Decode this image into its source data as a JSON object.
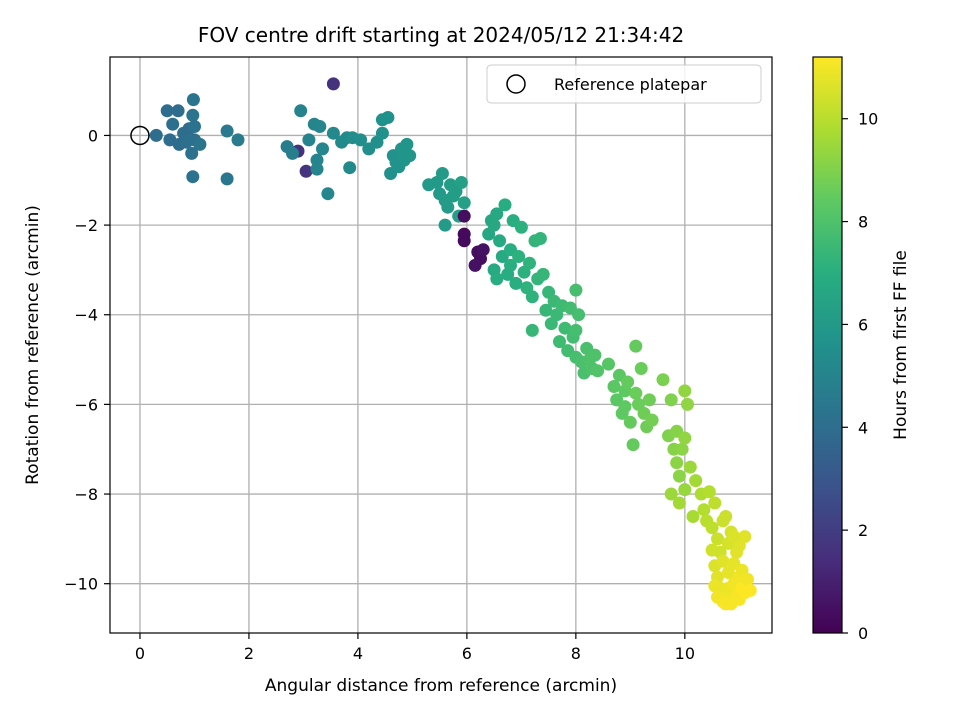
{
  "chart_data": {
    "type": "scatter",
    "title": "FOV centre drift starting at 2024/05/12 21:34:42",
    "xlabel": "Angular distance from reference (arcmin)",
    "ylabel": "Rotation from reference (arcmin)",
    "xlim": [
      -0.55,
      11.6
    ],
    "ylim": [
      -11.1,
      1.75
    ],
    "xticks": [
      0,
      2,
      4,
      6,
      8,
      10
    ],
    "yticks": [
      0,
      -2,
      -4,
      -6,
      -8,
      -10
    ],
    "grid": true,
    "legend": {
      "placement": "top-right",
      "entries": [
        "Reference platepar"
      ]
    },
    "reference_point": {
      "x": 0,
      "y": 0,
      "label": "Reference platepar"
    },
    "colorbar": {
      "label": "Hours from first FF file",
      "min": 0,
      "max": 11.2,
      "ticks": [
        0,
        2,
        4,
        6,
        8,
        10
      ],
      "colormap": "viridis"
    },
    "points": [
      {
        "x": 0.3,
        "y": 0.0,
        "t": 4.0
      },
      {
        "x": 0.5,
        "y": 0.55,
        "t": 4.0
      },
      {
        "x": 0.55,
        "y": -0.1,
        "t": 4.0
      },
      {
        "x": 0.6,
        "y": 0.25,
        "t": 4.1
      },
      {
        "x": 0.7,
        "y": 0.55,
        "t": 4.0
      },
      {
        "x": 0.72,
        "y": -0.2,
        "t": 3.9
      },
      {
        "x": 0.8,
        "y": 0.05,
        "t": 4.0
      },
      {
        "x": 0.85,
        "y": -0.15,
        "t": 4.1
      },
      {
        "x": 0.9,
        "y": 0.15,
        "t": 4.0
      },
      {
        "x": 0.95,
        "y": -0.4,
        "t": 4.2
      },
      {
        "x": 0.97,
        "y": 0.45,
        "t": 4.3
      },
      {
        "x": 1.0,
        "y": 0.2,
        "t": 4.2
      },
      {
        "x": 1.0,
        "y": -0.1,
        "t": 4.1
      },
      {
        "x": 0.98,
        "y": 0.8,
        "t": 4.3
      },
      {
        "x": 1.1,
        "y": -0.2,
        "t": 4.3
      },
      {
        "x": 0.97,
        "y": -0.92,
        "t": 4.2
      },
      {
        "x": 1.6,
        "y": -0.97,
        "t": 4.4
      },
      {
        "x": 1.6,
        "y": 0.1,
        "t": 4.5
      },
      {
        "x": 1.8,
        "y": -0.1,
        "t": 4.6
      },
      {
        "x": 2.9,
        "y": -0.35,
        "t": 1.6
      },
      {
        "x": 3.05,
        "y": -0.8,
        "t": 1.7
      },
      {
        "x": 3.55,
        "y": 1.15,
        "t": 1.6
      },
      {
        "x": 2.7,
        "y": -0.25,
        "t": 4.7
      },
      {
        "x": 2.8,
        "y": -0.4,
        "t": 4.8
      },
      {
        "x": 2.95,
        "y": 0.55,
        "t": 4.9
      },
      {
        "x": 3.1,
        "y": -0.1,
        "t": 5.0
      },
      {
        "x": 3.2,
        "y": 0.25,
        "t": 5.0
      },
      {
        "x": 3.25,
        "y": -0.55,
        "t": 5.0
      },
      {
        "x": 3.3,
        "y": 0.2,
        "t": 5.1
      },
      {
        "x": 3.35,
        "y": -0.3,
        "t": 5.1
      },
      {
        "x": 3.25,
        "y": -0.75,
        "t": 5.0
      },
      {
        "x": 3.45,
        "y": -1.3,
        "t": 5.1
      },
      {
        "x": 3.55,
        "y": 0.05,
        "t": 5.2
      },
      {
        "x": 3.7,
        "y": -0.15,
        "t": 5.3
      },
      {
        "x": 3.8,
        "y": -0.05,
        "t": 5.3
      },
      {
        "x": 3.85,
        "y": -0.72,
        "t": 5.3
      },
      {
        "x": 3.9,
        "y": -0.05,
        "t": 5.4
      },
      {
        "x": 4.05,
        "y": -0.1,
        "t": 5.5
      },
      {
        "x": 4.2,
        "y": -0.3,
        "t": 5.5
      },
      {
        "x": 4.35,
        "y": -0.15,
        "t": 5.5
      },
      {
        "x": 4.45,
        "y": 0.05,
        "t": 5.6
      },
      {
        "x": 4.45,
        "y": 0.35,
        "t": 5.6
      },
      {
        "x": 4.55,
        "y": 0.4,
        "t": 5.6
      },
      {
        "x": 4.6,
        "y": -0.85,
        "t": 5.6
      },
      {
        "x": 4.65,
        "y": -0.45,
        "t": 5.7
      },
      {
        "x": 4.7,
        "y": -0.6,
        "t": 5.7
      },
      {
        "x": 4.75,
        "y": -0.7,
        "t": 5.7
      },
      {
        "x": 4.8,
        "y": -0.3,
        "t": 5.8
      },
      {
        "x": 4.85,
        "y": -0.55,
        "t": 5.8
      },
      {
        "x": 4.9,
        "y": -0.2,
        "t": 5.8
      },
      {
        "x": 4.95,
        "y": -0.45,
        "t": 5.8
      },
      {
        "x": 5.3,
        "y": -1.1,
        "t": 6.0
      },
      {
        "x": 5.45,
        "y": -1.05,
        "t": 6.0
      },
      {
        "x": 5.5,
        "y": -1.3,
        "t": 6.0
      },
      {
        "x": 5.55,
        "y": -0.85,
        "t": 6.1
      },
      {
        "x": 5.6,
        "y": -1.45,
        "t": 6.1
      },
      {
        "x": 5.65,
        "y": -1.6,
        "t": 6.1
      },
      {
        "x": 5.7,
        "y": -1.1,
        "t": 6.2
      },
      {
        "x": 5.75,
        "y": -1.35,
        "t": 6.2
      },
      {
        "x": 5.8,
        "y": -1.25,
        "t": 6.2
      },
      {
        "x": 5.85,
        "y": -1.8,
        "t": 6.3
      },
      {
        "x": 5.9,
        "y": -1.05,
        "t": 6.3
      },
      {
        "x": 5.6,
        "y": -2.0,
        "t": 6.1
      },
      {
        "x": 5.95,
        "y": -1.5,
        "t": 6.3
      },
      {
        "x": 5.95,
        "y": -1.8,
        "t": 0.4
      },
      {
        "x": 5.95,
        "y": -2.2,
        "t": 0.3
      },
      {
        "x": 5.95,
        "y": -2.35,
        "t": 0.3
      },
      {
        "x": 6.2,
        "y": -2.6,
        "t": 0.4
      },
      {
        "x": 6.25,
        "y": -2.75,
        "t": 0.4
      },
      {
        "x": 6.15,
        "y": -2.9,
        "t": 0.5
      },
      {
        "x": 6.3,
        "y": -2.55,
        "t": 0.5
      },
      {
        "x": 6.4,
        "y": -2.2,
        "t": 6.6
      },
      {
        "x": 6.45,
        "y": -1.9,
        "t": 6.6
      },
      {
        "x": 6.5,
        "y": -2.0,
        "t": 6.7
      },
      {
        "x": 6.55,
        "y": -1.75,
        "t": 6.7
      },
      {
        "x": 6.6,
        "y": -2.35,
        "t": 6.8
      },
      {
        "x": 6.65,
        "y": -2.7,
        "t": 6.8
      },
      {
        "x": 6.5,
        "y": -3.0,
        "t": 6.8
      },
      {
        "x": 6.55,
        "y": -3.2,
        "t": 6.9
      },
      {
        "x": 6.7,
        "y": -1.55,
        "t": 6.9
      },
      {
        "x": 6.75,
        "y": -3.1,
        "t": 6.9
      },
      {
        "x": 6.8,
        "y": -2.55,
        "t": 7.0
      },
      {
        "x": 6.8,
        "y": -2.9,
        "t": 7.0
      },
      {
        "x": 6.85,
        "y": -1.9,
        "t": 7.0
      },
      {
        "x": 6.9,
        "y": -3.3,
        "t": 7.0
      },
      {
        "x": 6.95,
        "y": -2.7,
        "t": 7.1
      },
      {
        "x": 7.0,
        "y": -2.05,
        "t": 7.1
      },
      {
        "x": 7.05,
        "y": -3.05,
        "t": 7.1
      },
      {
        "x": 7.1,
        "y": -3.4,
        "t": 7.2
      },
      {
        "x": 7.15,
        "y": -2.85,
        "t": 7.2
      },
      {
        "x": 7.2,
        "y": -3.6,
        "t": 7.2
      },
      {
        "x": 7.25,
        "y": -2.35,
        "t": 7.3
      },
      {
        "x": 7.3,
        "y": -3.2,
        "t": 7.3
      },
      {
        "x": 7.35,
        "y": -2.3,
        "t": 7.3
      },
      {
        "x": 7.4,
        "y": -3.1,
        "t": 7.4
      },
      {
        "x": 7.45,
        "y": -3.9,
        "t": 7.4
      },
      {
        "x": 7.5,
        "y": -3.5,
        "t": 7.4
      },
      {
        "x": 7.55,
        "y": -4.2,
        "t": 7.5
      },
      {
        "x": 7.2,
        "y": -4.35,
        "t": 7.4
      },
      {
        "x": 7.6,
        "y": -3.7,
        "t": 7.5
      },
      {
        "x": 7.65,
        "y": -4.0,
        "t": 7.5
      },
      {
        "x": 7.7,
        "y": -4.6,
        "t": 7.6
      },
      {
        "x": 7.75,
        "y": -3.8,
        "t": 7.6
      },
      {
        "x": 7.8,
        "y": -4.3,
        "t": 7.6
      },
      {
        "x": 7.85,
        "y": -4.8,
        "t": 7.7
      },
      {
        "x": 7.9,
        "y": -3.85,
        "t": 7.7
      },
      {
        "x": 7.95,
        "y": -4.5,
        "t": 7.7
      },
      {
        "x": 8.0,
        "y": -3.45,
        "t": 7.8
      },
      {
        "x": 8.0,
        "y": -4.35,
        "t": 7.8
      },
      {
        "x": 8.05,
        "y": -4.0,
        "t": 7.8
      },
      {
        "x": 8.0,
        "y": -4.95,
        "t": 7.8
      },
      {
        "x": 8.1,
        "y": -5.05,
        "t": 7.9
      },
      {
        "x": 8.15,
        "y": -5.3,
        "t": 7.9
      },
      {
        "x": 8.2,
        "y": -4.75,
        "t": 7.9
      },
      {
        "x": 8.25,
        "y": -5.0,
        "t": 8.0
      },
      {
        "x": 8.3,
        "y": -5.2,
        "t": 8.0
      },
      {
        "x": 8.35,
        "y": -4.9,
        "t": 8.0
      },
      {
        "x": 8.4,
        "y": -5.25,
        "t": 8.1
      },
      {
        "x": 8.6,
        "y": -5.1,
        "t": 8.2
      },
      {
        "x": 8.7,
        "y": -5.6,
        "t": 8.3
      },
      {
        "x": 8.75,
        "y": -5.9,
        "t": 8.3
      },
      {
        "x": 8.8,
        "y": -5.35,
        "t": 8.3
      },
      {
        "x": 8.85,
        "y": -6.2,
        "t": 8.4
      },
      {
        "x": 8.9,
        "y": -5.7,
        "t": 8.4
      },
      {
        "x": 8.9,
        "y": -6.05,
        "t": 8.4
      },
      {
        "x": 8.95,
        "y": -5.5,
        "t": 8.5
      },
      {
        "x": 9.0,
        "y": -6.4,
        "t": 8.5
      },
      {
        "x": 9.05,
        "y": -6.9,
        "t": 8.5
      },
      {
        "x": 9.1,
        "y": -5.75,
        "t": 8.6
      },
      {
        "x": 9.1,
        "y": -4.7,
        "t": 8.5
      },
      {
        "x": 9.15,
        "y": -6.0,
        "t": 8.6
      },
      {
        "x": 9.2,
        "y": -5.2,
        "t": 8.6
      },
      {
        "x": 9.25,
        "y": -6.2,
        "t": 8.7
      },
      {
        "x": 9.3,
        "y": -6.5,
        "t": 8.7
      },
      {
        "x": 9.35,
        "y": -5.9,
        "t": 8.7
      },
      {
        "x": 9.4,
        "y": -6.35,
        "t": 8.8
      },
      {
        "x": 9.6,
        "y": -5.45,
        "t": 8.9
      },
      {
        "x": 9.7,
        "y": -6.7,
        "t": 9.0
      },
      {
        "x": 9.75,
        "y": -5.9,
        "t": 9.0
      },
      {
        "x": 9.8,
        "y": -7.0,
        "t": 9.1
      },
      {
        "x": 9.85,
        "y": -6.6,
        "t": 9.1
      },
      {
        "x": 9.85,
        "y": -7.3,
        "t": 9.2
      },
      {
        "x": 9.9,
        "y": -7.6,
        "t": 9.2
      },
      {
        "x": 9.95,
        "y": -7.0,
        "t": 9.2
      },
      {
        "x": 10.0,
        "y": -5.7,
        "t": 9.3
      },
      {
        "x": 10.0,
        "y": -6.75,
        "t": 9.3
      },
      {
        "x": 10.0,
        "y": -7.9,
        "t": 9.4
      },
      {
        "x": 10.05,
        "y": -6.0,
        "t": 9.3
      },
      {
        "x": 9.75,
        "y": -8.0,
        "t": 9.5
      },
      {
        "x": 9.9,
        "y": -8.2,
        "t": 9.6
      },
      {
        "x": 10.1,
        "y": -7.4,
        "t": 9.5
      },
      {
        "x": 10.15,
        "y": -8.5,
        "t": 9.7
      },
      {
        "x": 10.2,
        "y": -7.7,
        "t": 9.6
      },
      {
        "x": 10.3,
        "y": -8.0,
        "t": 9.8
      },
      {
        "x": 10.35,
        "y": -8.35,
        "t": 9.9
      },
      {
        "x": 10.4,
        "y": -8.6,
        "t": 10.0
      },
      {
        "x": 10.45,
        "y": -7.95,
        "t": 9.9
      },
      {
        "x": 10.5,
        "y": -8.75,
        "t": 10.1
      },
      {
        "x": 10.55,
        "y": -8.2,
        "t": 10.1
      },
      {
        "x": 10.6,
        "y": -9.0,
        "t": 10.3
      },
      {
        "x": 10.65,
        "y": -9.3,
        "t": 10.4
      },
      {
        "x": 10.7,
        "y": -8.6,
        "t": 10.3
      },
      {
        "x": 10.75,
        "y": -8.5,
        "t": 10.3
      },
      {
        "x": 10.8,
        "y": -9.1,
        "t": 10.5
      },
      {
        "x": 10.85,
        "y": -8.85,
        "t": 10.5
      },
      {
        "x": 10.5,
        "y": -9.25,
        "t": 10.4
      },
      {
        "x": 10.55,
        "y": -9.6,
        "t": 10.6
      },
      {
        "x": 10.6,
        "y": -9.85,
        "t": 10.7
      },
      {
        "x": 10.65,
        "y": -10.1,
        "t": 10.8
      },
      {
        "x": 10.7,
        "y": -9.5,
        "t": 10.7
      },
      {
        "x": 10.7,
        "y": -10.4,
        "t": 11.0
      },
      {
        "x": 10.75,
        "y": -10.3,
        "t": 11.0
      },
      {
        "x": 10.8,
        "y": -9.75,
        "t": 10.8
      },
      {
        "x": 10.8,
        "y": -10.1,
        "t": 10.9
      },
      {
        "x": 10.85,
        "y": -10.45,
        "t": 11.1
      },
      {
        "x": 10.9,
        "y": -9.55,
        "t": 10.8
      },
      {
        "x": 10.9,
        "y": -10.0,
        "t": 11.0
      },
      {
        "x": 10.95,
        "y": -10.25,
        "t": 11.1
      },
      {
        "x": 11.0,
        "y": -9.85,
        "t": 11.0
      },
      {
        "x": 11.0,
        "y": -10.35,
        "t": 11.1
      },
      {
        "x": 11.05,
        "y": -10.1,
        "t": 11.2
      },
      {
        "x": 11.1,
        "y": -10.2,
        "t": 11.2
      },
      {
        "x": 10.55,
        "y": -10.05,
        "t": 10.9
      },
      {
        "x": 10.6,
        "y": -10.3,
        "t": 11.0
      },
      {
        "x": 10.95,
        "y": -9.3,
        "t": 10.7
      },
      {
        "x": 11.0,
        "y": -9.15,
        "t": 10.7
      },
      {
        "x": 11.05,
        "y": -9.7,
        "t": 10.9
      },
      {
        "x": 11.1,
        "y": -8.95,
        "t": 10.7
      },
      {
        "x": 11.15,
        "y": -9.9,
        "t": 11.0
      },
      {
        "x": 11.2,
        "y": -10.15,
        "t": 11.2
      },
      {
        "x": 10.9,
        "y": -8.95,
        "t": 10.6
      },
      {
        "x": 10.75,
        "y": -10.45,
        "t": 11.1
      }
    ]
  }
}
